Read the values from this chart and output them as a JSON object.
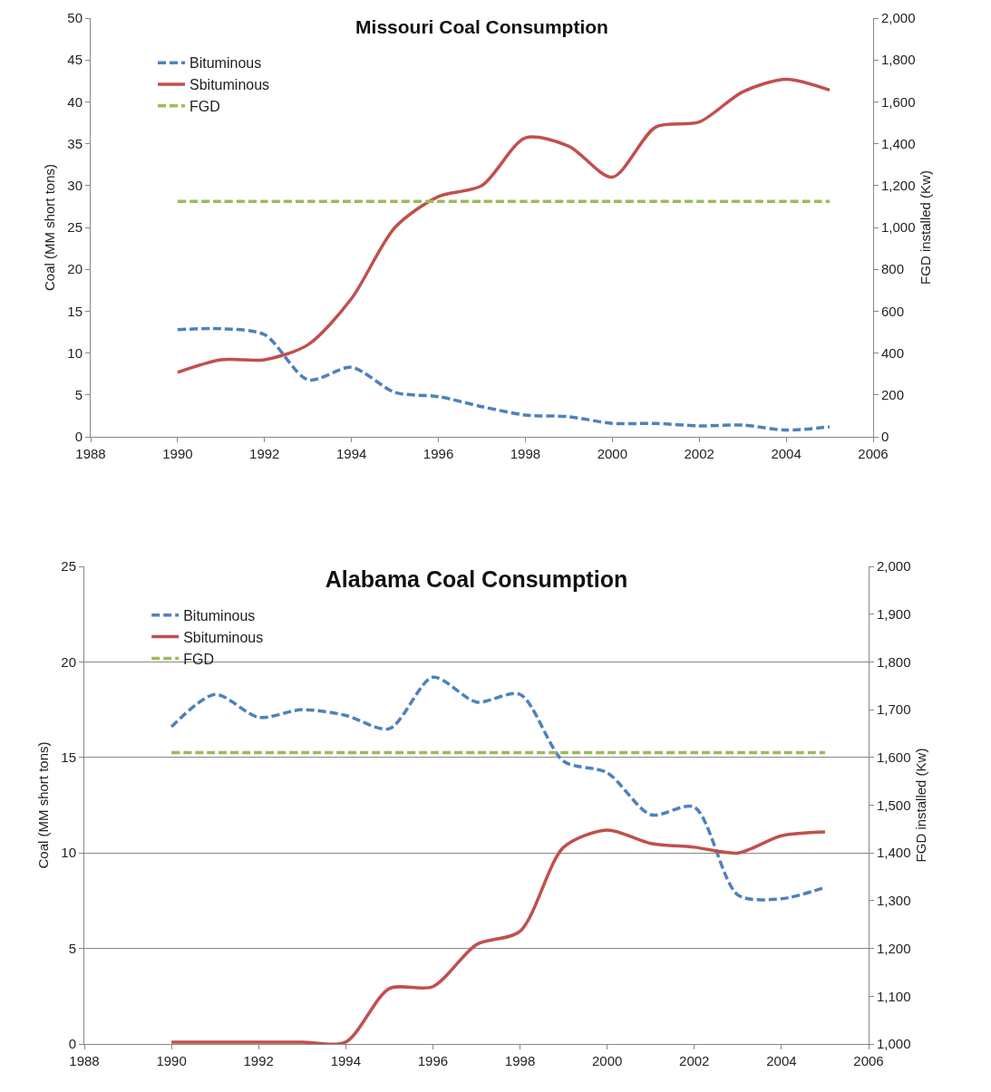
{
  "chart_data": [
    {
      "type": "line",
      "title": "Missouri Coal Consumption",
      "ylabel": "Coal (MM short tons)",
      "y2label": "FGD installed (Kw)",
      "x": [
        1990,
        1991,
        1992,
        1993,
        1994,
        1995,
        1996,
        1997,
        1998,
        1999,
        2000,
        2001,
        2002,
        2003,
        2004,
        2005
      ],
      "series": [
        {
          "name": "Bituminous",
          "color": "#4f81bd",
          "line_style": "dashed",
          "values": [
            12.8,
            12.9,
            12.2,
            6.8,
            8.3,
            5.3,
            4.8,
            3.6,
            2.6,
            2.4,
            1.6,
            1.6,
            1.3,
            1.4,
            0.8,
            1.2
          ]
        },
        {
          "name": "Sbituminous",
          "color": "#c0504d",
          "line_style": "solid",
          "values": [
            7.7,
            9.2,
            9.2,
            11,
            16.5,
            25,
            28.7,
            30,
            35.7,
            34.7,
            31,
            37,
            37.6,
            41.2,
            42.7,
            41.4
          ]
        },
        {
          "name": "FGD",
          "color": "#9bbb59",
          "line_style": "dashed",
          "axis": "y2",
          "values": [
            1125,
            1125,
            1125,
            1125,
            1125,
            1125,
            1125,
            1125,
            1125,
            1125,
            1125,
            1125,
            1125,
            1125,
            1125,
            1125
          ]
        }
      ],
      "xlim": [
        1988,
        2006
      ],
      "xticks": [
        1988,
        1990,
        1992,
        1994,
        1996,
        1998,
        2000,
        2002,
        2004,
        2006
      ],
      "ylim": [
        0,
        50
      ],
      "yticks": [
        0,
        5,
        10,
        15,
        20,
        25,
        30,
        35,
        40,
        45,
        50
      ],
      "y2lim": [
        0,
        2000
      ],
      "y2ticks": [
        0,
        {
          "value": 200,
          "label": "200"
        },
        {
          "value": 400,
          "label": "400"
        },
        {
          "value": 600,
          "label": "600"
        },
        {
          "value": 800,
          "label": "800"
        },
        {
          "value": 1000,
          "label": "1,000"
        },
        {
          "value": 1200,
          "label": "1,200"
        },
        {
          "value": 1400,
          "label": "1,400"
        },
        {
          "value": 1600,
          "label": "1,600"
        },
        {
          "value": 1800,
          "label": "1,800"
        },
        {
          "value": 2000,
          "label": "2,000"
        }
      ],
      "grid": false,
      "legend": "top left",
      "marker": "none"
    },
    {
      "type": "line",
      "title": "Alabama Coal Consumption",
      "ylabel": "Coal (MM short tons)",
      "y2label": "FGD installed (Kw)",
      "x": [
        1990,
        1991,
        1992,
        1993,
        1994,
        1995,
        1996,
        1997,
        1998,
        1999,
        2000,
        2001,
        2002,
        2003,
        2004,
        2005
      ],
      "series": [
        {
          "name": "Bituminous",
          "color": "#4f81bd",
          "line_style": "dashed",
          "values": [
            16.6,
            18.3,
            17.1,
            17.5,
            17.2,
            16.5,
            19.2,
            17.9,
            18.3,
            14.8,
            14.2,
            12,
            12.4,
            7.8,
            7.6,
            8.2
          ]
        },
        {
          "name": "Sbituminous",
          "color": "#c0504d",
          "line_style": "solid",
          "values": [
            0.1,
            0.1,
            0.1,
            0.1,
            0.1,
            2.9,
            3,
            5.2,
            5.9,
            10.3,
            11.2,
            10.5,
            10.3,
            10,
            10.9,
            11.1
          ]
        },
        {
          "name": "FGD",
          "color": "#9bbb59",
          "line_style": "dashed",
          "axis": "y2",
          "values": [
            1610,
            1610,
            1610,
            1610,
            1610,
            1610,
            1610,
            1610,
            1610,
            1610,
            1610,
            1610,
            1610,
            1610,
            1610,
            1610
          ]
        }
      ],
      "xlim": [
        1988,
        2006
      ],
      "xticks": [
        1988,
        1990,
        1992,
        1994,
        1996,
        1998,
        2000,
        2002,
        2004,
        2006
      ],
      "ylim": [
        0,
        25
      ],
      "yticks": [
        0,
        5,
        10,
        15,
        20,
        25
      ],
      "y2lim": [
        1000,
        2000
      ],
      "y2ticks": [
        {
          "value": 1000,
          "label": "1,000"
        },
        {
          "value": 1100,
          "label": "1,100"
        },
        {
          "value": 1200,
          "label": "1,200"
        },
        {
          "value": 1300,
          "label": "1,300"
        },
        {
          "value": 1400,
          "label": "1,400"
        },
        {
          "value": 1500,
          "label": "1,500"
        },
        {
          "value": 1600,
          "label": "1,600"
        },
        {
          "value": 1700,
          "label": "1,700"
        },
        {
          "value": 1800,
          "label": "1,800"
        },
        {
          "value": 1900,
          "label": "1,900"
        },
        {
          "value": 2000,
          "label": "2,000"
        }
      ],
      "grid": "y",
      "legend": "top left",
      "marker": "none"
    }
  ]
}
